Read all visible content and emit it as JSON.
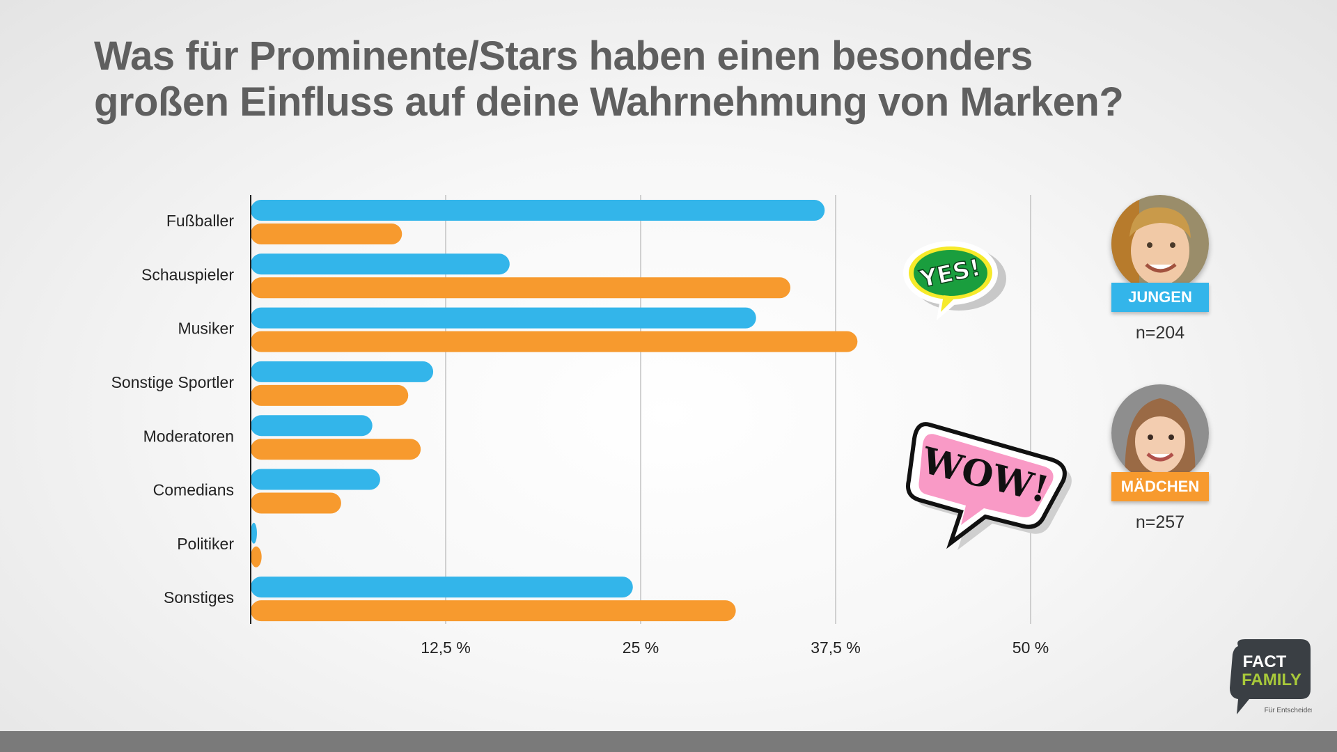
{
  "title_line1": "Was für Prominente/Stars haben einen besonders",
  "title_line2": "großen Einfluss auf deine Wahrnehmung von Marken?",
  "colors": {
    "jungen": "#33b5ea",
    "maedchen": "#f79a2e"
  },
  "legend": {
    "jungen": {
      "label": "JUNGEN",
      "n": "n=204",
      "icon": "boy-avatar"
    },
    "maedchen": {
      "label": "MÄDCHEN",
      "n": "n=257",
      "icon": "girl-avatar"
    }
  },
  "stickers": {
    "yes": "YES!",
    "wow": "WOW!"
  },
  "logo": {
    "line1": "FACT",
    "line2": "FAMILY",
    "tagline": "Für Entscheider."
  },
  "chart_data": {
    "type": "bar",
    "orientation": "horizontal",
    "categories": [
      "Fußballer",
      "Schauspieler",
      "Musiker",
      "Sonstige Sportler",
      "Moderatoren",
      "Comedians",
      "Politiker",
      "Sonstiges"
    ],
    "series": [
      {
        "name": "JUNGEN",
        "values": [
          36.8,
          16.6,
          32.4,
          11.7,
          7.8,
          8.3,
          0.4,
          24.5
        ]
      },
      {
        "name": "MÄDCHEN",
        "values": [
          9.7,
          34.6,
          38.9,
          10.1,
          10.9,
          5.8,
          0.7,
          31.1
        ]
      }
    ],
    "xlim": [
      0,
      50
    ],
    "xticks": [
      12.5,
      25,
      37.5,
      50
    ],
    "xtick_labels": [
      "12,5 %",
      "25 %",
      "37,5 %",
      "50 %"
    ],
    "grid": true,
    "legend_position": "right"
  }
}
